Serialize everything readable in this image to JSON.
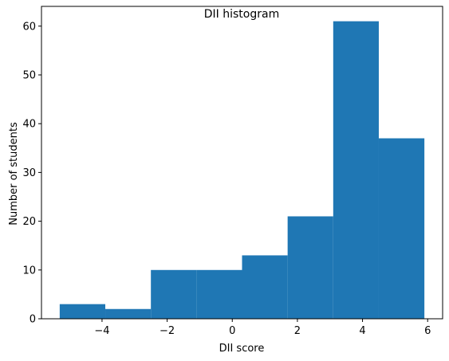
{
  "chart_data": {
    "type": "bar",
    "title": "DII histogram",
    "xlabel": "DII score",
    "ylabel": "Number of students",
    "bin_edges": [
      -5.3,
      -3.9,
      -2.5,
      -1.1,
      0.3,
      1.7,
      3.1,
      4.5,
      5.9
    ],
    "values": [
      3,
      2,
      10,
      10,
      13,
      21,
      61,
      37
    ],
    "xlim": [
      -5.86,
      6.46
    ],
    "ylim": [
      0,
      64.05
    ],
    "xticks": [
      -4,
      -2,
      0,
      2,
      4,
      6
    ],
    "xtick_labels": [
      "−4",
      "−2",
      "0",
      "2",
      "4",
      "6"
    ],
    "yticks": [
      0,
      10,
      20,
      30,
      40,
      50,
      60
    ],
    "ytick_labels": [
      "0",
      "10",
      "20",
      "30",
      "40",
      "50",
      "60"
    ],
    "bar_color": "#1f77b4",
    "grid": false,
    "legend": "none"
  }
}
